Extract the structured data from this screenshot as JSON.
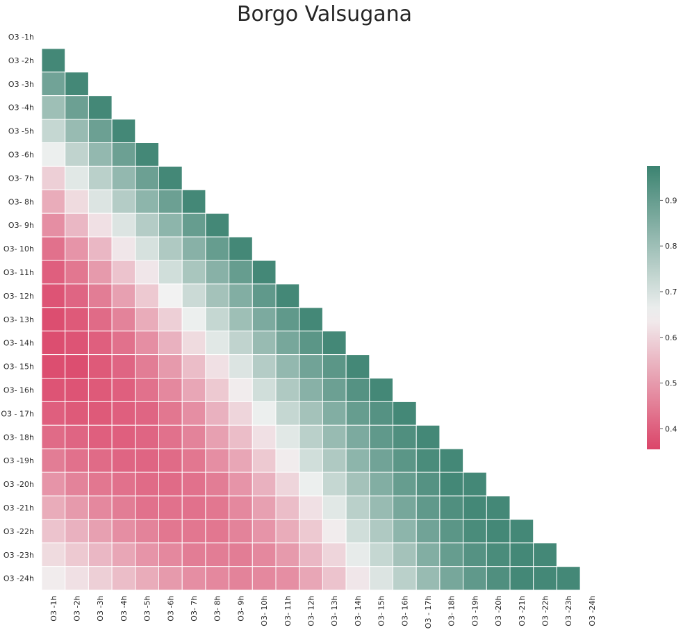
{
  "chart_data": {
    "type": "heatmap",
    "title": "Borgo Valsugana",
    "row_labels": [
      "O3 -1h",
      "O3 -2h",
      "O3 -3h",
      "O3 -4h",
      "O3 -5h",
      "O3 -6h",
      "O3- 7h",
      "O3- 8h",
      "O3- 9h",
      "O3- 10h",
      "O3- 11h",
      "O3- 12h",
      "O3- 13h",
      "O3- 14h",
      "O3- 15h",
      "O3- 16h",
      "O3 - 17h",
      "O3- 18h",
      "O3 -19h",
      "O3 -20h",
      "O3 -21h",
      "O3 -22h",
      "O3 -23h",
      "O3 -24h"
    ],
    "col_labels": [
      "O3 -1h",
      "O3 -2h",
      "O3 -3h",
      "O3 -4h",
      "O3 -5h",
      "O3 -6h",
      "O3- 7h",
      "O3- 8h",
      "O3- 9h",
      "O3- 10h",
      "O3- 11h",
      "O3- 12h",
      "O3- 13h",
      "O3- 14h",
      "O3- 15h",
      "O3- 16h",
      "O3 - 17h",
      "O3- 18h",
      "O3 -19h",
      "O3 -20h",
      "O3 -21h",
      "O3 -22h",
      "O3 -23h",
      "O3 -24h"
    ],
    "mask": "upper-triangle-including-diagonal",
    "values": [
      [],
      [
        0.96
      ],
      [
        0.88,
        0.96
      ],
      [
        0.8,
        0.89,
        0.96
      ],
      [
        0.73,
        0.81,
        0.89,
        0.96
      ],
      [
        0.66,
        0.74,
        0.82,
        0.89,
        0.96
      ],
      [
        0.59,
        0.68,
        0.75,
        0.82,
        0.89,
        0.96
      ],
      [
        0.53,
        0.61,
        0.69,
        0.76,
        0.83,
        0.89,
        0.96
      ],
      [
        0.48,
        0.55,
        0.62,
        0.69,
        0.76,
        0.83,
        0.9,
        0.96
      ],
      [
        0.43,
        0.49,
        0.55,
        0.63,
        0.7,
        0.77,
        0.84,
        0.9,
        0.96
      ],
      [
        0.4,
        0.44,
        0.5,
        0.57,
        0.63,
        0.71,
        0.78,
        0.84,
        0.9,
        0.96
      ],
      [
        0.38,
        0.41,
        0.45,
        0.51,
        0.58,
        0.65,
        0.72,
        0.79,
        0.85,
        0.91,
        0.96
      ],
      [
        0.37,
        0.39,
        0.42,
        0.46,
        0.53,
        0.59,
        0.66,
        0.73,
        0.8,
        0.86,
        0.91,
        0.96
      ],
      [
        0.37,
        0.38,
        0.4,
        0.43,
        0.48,
        0.54,
        0.61,
        0.68,
        0.74,
        0.81,
        0.87,
        0.92,
        0.96
      ],
      [
        0.37,
        0.37,
        0.39,
        0.41,
        0.45,
        0.5,
        0.56,
        0.62,
        0.69,
        0.76,
        0.82,
        0.88,
        0.92,
        0.96
      ],
      [
        0.38,
        0.38,
        0.39,
        0.4,
        0.43,
        0.47,
        0.52,
        0.58,
        0.64,
        0.71,
        0.77,
        0.84,
        0.89,
        0.93,
        0.96
      ],
      [
        0.4,
        0.39,
        0.39,
        0.4,
        0.41,
        0.44,
        0.48,
        0.54,
        0.6,
        0.66,
        0.73,
        0.79,
        0.85,
        0.9,
        0.93,
        0.96
      ],
      [
        0.42,
        0.41,
        0.4,
        0.4,
        0.41,
        0.43,
        0.46,
        0.51,
        0.56,
        0.62,
        0.68,
        0.75,
        0.81,
        0.86,
        0.91,
        0.94,
        0.96
      ],
      [
        0.45,
        0.43,
        0.42,
        0.41,
        0.41,
        0.42,
        0.44,
        0.48,
        0.52,
        0.58,
        0.64,
        0.71,
        0.77,
        0.83,
        0.88,
        0.92,
        0.95,
        0.96
      ],
      [
        0.49,
        0.46,
        0.44,
        0.43,
        0.42,
        0.42,
        0.43,
        0.45,
        0.49,
        0.54,
        0.6,
        0.66,
        0.73,
        0.79,
        0.85,
        0.9,
        0.93,
        0.96,
        0.96
      ],
      [
        0.53,
        0.5,
        0.47,
        0.45,
        0.43,
        0.43,
        0.43,
        0.44,
        0.47,
        0.51,
        0.56,
        0.62,
        0.68,
        0.75,
        0.81,
        0.87,
        0.91,
        0.94,
        0.96,
        0.96
      ],
      [
        0.57,
        0.54,
        0.51,
        0.48,
        0.46,
        0.44,
        0.44,
        0.44,
        0.46,
        0.49,
        0.53,
        0.58,
        0.64,
        0.71,
        0.77,
        0.83,
        0.88,
        0.92,
        0.95,
        0.96,
        0.96
      ],
      [
        0.61,
        0.58,
        0.55,
        0.52,
        0.49,
        0.47,
        0.45,
        0.45,
        0.45,
        0.47,
        0.5,
        0.55,
        0.6,
        0.67,
        0.73,
        0.79,
        0.85,
        0.9,
        0.93,
        0.95,
        0.96,
        0.96
      ],
      [
        0.64,
        0.62,
        0.59,
        0.56,
        0.53,
        0.5,
        0.48,
        0.47,
        0.46,
        0.47,
        0.48,
        0.52,
        0.57,
        0.63,
        0.69,
        0.75,
        0.81,
        0.87,
        0.91,
        0.94,
        0.96,
        0.96,
        0.96
      ]
    ],
    "colorbar": {
      "min": 0.355,
      "max": 0.975,
      "center": 0.65,
      "ticks": [
        0.4,
        0.5,
        0.6,
        0.7,
        0.8,
        0.9
      ],
      "tick_labels": [
        "0.4",
        "0.5",
        "0.6",
        "0.7",
        "0.8",
        "0.9"
      ]
    },
    "colors": {
      "low": "#db4569",
      "mid": "#f2f2f2",
      "high": "#3c8371",
      "grid_line": "#ffffff"
    }
  }
}
